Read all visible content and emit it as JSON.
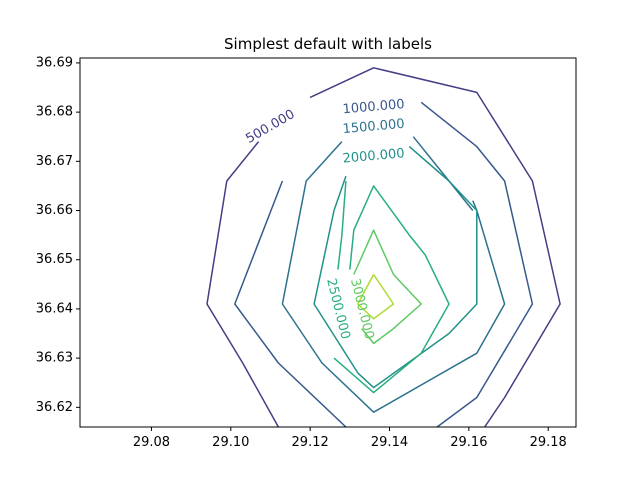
{
  "chart_data": {
    "type": "contour",
    "title": "Simplest default with labels",
    "xlabel": "",
    "ylabel": "",
    "xlim": [
      29.062,
      29.187
    ],
    "ylim": [
      36.616,
      36.691
    ],
    "x_ticks": [
      "29.08",
      "29.10",
      "29.12",
      "29.14",
      "29.16",
      "29.18"
    ],
    "x_tick_values": [
      29.08,
      29.1,
      29.12,
      29.14,
      29.16,
      29.18
    ],
    "y_ticks": [
      "36.62",
      "36.63",
      "36.64",
      "36.65",
      "36.66",
      "36.67",
      "36.68",
      "36.69"
    ],
    "y_tick_values": [
      36.62,
      36.63,
      36.64,
      36.65,
      36.66,
      36.67,
      36.68,
      36.69
    ],
    "grid": false,
    "levels": [
      {
        "level": 500,
        "label": "500.000",
        "color": "#433e85",
        "paths": [
          [
            [
              29.107,
              36.674
            ],
            [
              29.099,
              36.666
            ],
            [
              29.094,
              36.641
            ],
            [
              29.103,
              36.629
            ],
            [
              29.112,
              36.616
            ]
          ],
          [
            [
              29.12,
              36.683
            ],
            [
              29.136,
              36.689
            ],
            [
              29.162,
              36.684
            ],
            [
              29.176,
              36.666
            ],
            [
              29.183,
              36.641
            ],
            [
              29.169,
              36.622
            ],
            [
              29.164,
              36.616
            ]
          ]
        ],
        "label_pos": [
          29.11,
          36.677
        ],
        "label_angle": -30
      },
      {
        "level": 1000,
        "label": "1000.000",
        "color": "#38598c",
        "paths": [
          [
            [
              29.113,
              36.666
            ],
            [
              29.101,
              36.641
            ],
            [
              29.112,
              36.629
            ],
            [
              29.129,
              36.616
            ]
          ],
          [
            [
              29.148,
              36.682
            ],
            [
              29.162,
              36.673
            ],
            [
              29.169,
              36.666
            ],
            [
              29.176,
              36.641
            ],
            [
              29.162,
              36.622
            ],
            [
              29.152,
              36.616
            ]
          ]
        ],
        "label_pos": [
          29.136,
          36.681
        ],
        "label_angle": -5
      },
      {
        "level": 1500,
        "label": "1500.000",
        "color": "#2c728e",
        "paths": [
          [
            [
              29.128,
              36.674
            ],
            [
              29.119,
              36.666
            ],
            [
              29.113,
              36.641
            ],
            [
              29.123,
              36.629
            ],
            [
              29.136,
              36.619
            ],
            [
              29.162,
              36.631
            ],
            [
              29.169,
              36.641
            ],
            [
              29.162,
              36.66
            ],
            [
              29.161,
              36.662
            ]
          ],
          [
            [
              29.146,
              36.675
            ],
            [
              29.155,
              36.666
            ],
            [
              29.161,
              36.66
            ]
          ]
        ],
        "label_pos": [
          29.136,
          36.677
        ],
        "label_angle": -5
      },
      {
        "level": 2000,
        "label": "2000.000",
        "color": "#21918c",
        "paths": [
          [
            [
              29.129,
              36.667
            ],
            [
              29.126,
              36.66
            ],
            [
              29.121,
              36.641
            ],
            [
              29.132,
              36.627
            ],
            [
              29.136,
              36.624
            ],
            [
              29.155,
              36.635
            ],
            [
              29.162,
              36.641
            ],
            [
              29.162,
              36.66
            ],
            [
              29.155,
              36.666
            ],
            [
              29.145,
              36.673
            ]
          ]
        ],
        "label_pos": [
          29.136,
          36.671
        ],
        "label_angle": -5
      },
      {
        "level": 2500,
        "label": "2500.000",
        "color": "#28ae80",
        "paths": [
          [
            [
              29.129,
              36.666
            ],
            [
              29.128,
              36.655
            ],
            [
              29.127,
              36.648
            ]
          ],
          [
            [
              29.126,
              36.63
            ],
            [
              29.136,
              36.623
            ],
            [
              29.148,
              36.631
            ],
            [
              29.155,
              36.641
            ],
            [
              29.149,
              36.651
            ],
            [
              29.145,
              36.655
            ],
            [
              29.136,
              36.665
            ],
            [
              29.131,
              36.656
            ],
            [
              29.13,
              36.648
            ]
          ]
        ],
        "label_pos": [
          29.127,
          36.64
        ],
        "label_angle": 76
      },
      {
        "level": 3000,
        "label": "3000.000",
        "color": "#5ec962",
        "paths": [
          [
            [
              29.131,
              36.647
            ],
            [
              29.136,
              36.656
            ],
            [
              29.141,
              36.647
            ],
            [
              29.148,
              36.641
            ],
            [
              29.141,
              36.636
            ],
            [
              29.136,
              36.633
            ],
            [
              29.133,
              36.636
            ]
          ]
        ],
        "label_pos": [
          29.133,
          36.64
        ],
        "label_angle": 76
      },
      {
        "level": 3500,
        "label": "",
        "color": "#addc30",
        "paths": [
          [
            [
              29.136,
              36.647
            ],
            [
              29.132,
              36.641
            ],
            [
              29.136,
              36.638
            ],
            [
              29.141,
              36.641
            ],
            [
              29.136,
              36.647
            ]
          ]
        ],
        "label_pos": null,
        "label_angle": 0
      }
    ]
  }
}
